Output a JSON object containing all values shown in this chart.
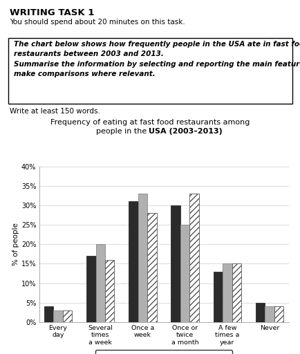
{
  "title_line1": "Frequency of eating at fast food restaurants among",
  "title_line2": "people in the USA (2003–2013)",
  "categories": [
    "Every\nday",
    "Several\ntimes\na week",
    "Once a\nweek",
    "Once or\ntwice\na month",
    "A few\ntimes a\nyear",
    "Never"
  ],
  "series": {
    "2003": [
      4,
      17,
      31,
      30,
      13,
      5
    ],
    "2006": [
      3,
      20,
      33,
      25,
      15,
      4
    ],
    "2013": [
      3,
      16,
      28,
      33,
      15,
      4
    ]
  },
  "colors": {
    "2003": "#2b2b2b",
    "2006": "#b0b0b0",
    "2013": "#ffffff"
  },
  "hatches": {
    "2003": "",
    "2006": "",
    "2013": "////"
  },
  "edgecolors": {
    "2003": "#2b2b2b",
    "2006": "#888888",
    "2013": "#555555"
  },
  "ylabel": "% of people",
  "ylim": [
    0,
    40
  ],
  "yticks": [
    0,
    5,
    10,
    15,
    20,
    25,
    30,
    35,
    40
  ],
  "ytick_labels": [
    "0%",
    "5%",
    "10%",
    "15%",
    "20%",
    "25%",
    "30%",
    "35%",
    "40%"
  ],
  "header_title": "WRITING TASK 1",
  "header_sub": "You should spend about 20 minutes on this task.",
  "box_line1": "The chart below shows how frequently people in the USA ate in fast food",
  "box_line2": "restaurants between 2003 and 2013.",
  "box_line3": "Summarise the information by selecting and reporting the main features, and",
  "box_line4": "make comparisons where relevant.",
  "footer_text": "Write at least 150 words.",
  "bar_width": 0.22,
  "background_color": "#ffffff"
}
